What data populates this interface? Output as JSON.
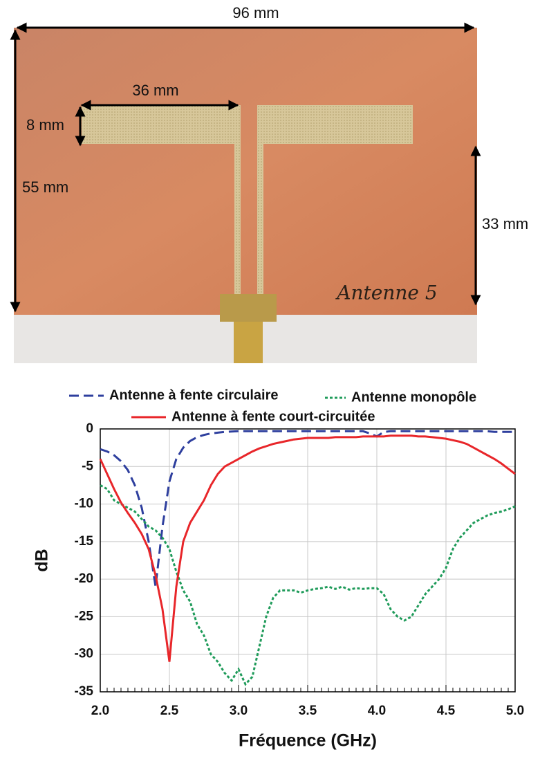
{
  "photo": {
    "labels": [
      "96 mm",
      "36 mm",
      "8 mm",
      "55 mm",
      "33 mm"
    ],
    "handwriting": "Antenne 5"
  },
  "chart_data": {
    "type": "line",
    "xlabel": "Fréquence (GHz)",
    "ylabel": "dB",
    "x": [
      2.0,
      2.05,
      2.1,
      2.15,
      2.2,
      2.25,
      2.3,
      2.35,
      2.4,
      2.45,
      2.5,
      2.55,
      2.6,
      2.65,
      2.7,
      2.75,
      2.8,
      2.85,
      2.9,
      2.95,
      3.0,
      3.05,
      3.1,
      3.15,
      3.2,
      3.25,
      3.3,
      3.35,
      3.4,
      3.45,
      3.5,
      3.55,
      3.6,
      3.65,
      3.7,
      3.75,
      3.8,
      3.85,
      3.9,
      3.95,
      4.0,
      4.05,
      4.1,
      4.15,
      4.2,
      4.25,
      4.3,
      4.35,
      4.4,
      4.45,
      4.5,
      4.55,
      4.6,
      4.65,
      4.7,
      4.75,
      4.8,
      4.85,
      4.9,
      4.95,
      5.0
    ],
    "series": [
      {
        "name": "Antenne à fente circulaire",
        "color": "#2e3f9e",
        "dash": "14 7",
        "values": [
          -2.7,
          -3.0,
          -3.5,
          -4.3,
          -5.5,
          -7.5,
          -10.5,
          -15,
          -21,
          -13,
          -7,
          -4,
          -2.5,
          -1.6,
          -1.1,
          -0.8,
          -0.6,
          -0.5,
          -0.4,
          -0.35,
          -0.3,
          -0.3,
          -0.3,
          -0.3,
          -0.3,
          -0.3,
          -0.3,
          -0.3,
          -0.3,
          -0.3,
          -0.3,
          -0.3,
          -0.3,
          -0.3,
          -0.3,
          -0.3,
          -0.3,
          -0.3,
          -0.3,
          -0.6,
          -1.0,
          -0.4,
          -0.3,
          -0.3,
          -0.3,
          -0.3,
          -0.3,
          -0.3,
          -0.3,
          -0.3,
          -0.3,
          -0.3,
          -0.3,
          -0.3,
          -0.3,
          -0.3,
          -0.3,
          -0.4,
          -0.4,
          -0.4,
          -0.4
        ]
      },
      {
        "name": "Antenne monopôle",
        "color": "#1f9b5a",
        "dash": "4 3",
        "values": [
          -7.5,
          -8,
          -9.5,
          -10,
          -10.5,
          -11,
          -12,
          -13,
          -13.5,
          -14.5,
          -16,
          -19,
          -21.5,
          -23,
          -26,
          -27.5,
          -30,
          -31,
          -32.5,
          -33.5,
          -32,
          -34,
          -33,
          -29,
          -25,
          -22.5,
          -21.5,
          -21.5,
          -21.5,
          -21.8,
          -21.5,
          -21.3,
          -21.2,
          -21,
          -21.3,
          -21,
          -21.4,
          -21.2,
          -21.3,
          -21.2,
          -21.2,
          -22,
          -24,
          -25,
          -25.5,
          -25,
          -23.5,
          -22,
          -21,
          -20,
          -18.5,
          -16,
          -14.5,
          -13.5,
          -12.5,
          -12,
          -11.5,
          -11.2,
          -11,
          -10.7,
          -10.3
        ]
      },
      {
        "name": "Antenne à fente court-circuitée",
        "color": "#e8262a",
        "dash": "none",
        "values": [
          -4,
          -6,
          -8,
          -9.8,
          -11.2,
          -12.5,
          -14,
          -16,
          -19.5,
          -24,
          -31,
          -21,
          -15,
          -12.5,
          -11,
          -9.5,
          -7.5,
          -6,
          -5,
          -4.5,
          -4,
          -3.5,
          -3,
          -2.6,
          -2.3,
          -2,
          -1.8,
          -1.6,
          -1.4,
          -1.3,
          -1.2,
          -1.2,
          -1.2,
          -1.2,
          -1.1,
          -1.1,
          -1.1,
          -1.1,
          -1,
          -1,
          -1,
          -1,
          -0.9,
          -0.9,
          -0.9,
          -0.9,
          -1,
          -1,
          -1.1,
          -1.2,
          -1.3,
          -1.5,
          -1.7,
          -2,
          -2.5,
          -3,
          -3.5,
          -4,
          -4.6,
          -5.3,
          -6
        ]
      }
    ],
    "xlim": [
      2.0,
      5.0
    ],
    "xticks": [
      {
        "value": 2.0,
        "label": "2.0"
      },
      {
        "value": 2.5,
        "label": "2.5"
      },
      {
        "value": 3.0,
        "label": "3.0"
      },
      {
        "value": 3.5,
        "label": "3.5"
      },
      {
        "value": 4.0,
        "label": "4.0"
      },
      {
        "value": 4.5,
        "label": "4.5"
      },
      {
        "value": 5.0,
        "label": "5.0"
      }
    ],
    "ylim": [
      -35,
      0
    ],
    "yticks": [
      0,
      -5,
      -10,
      -15,
      -20,
      -25,
      -30,
      -35
    ],
    "grid": true
  }
}
